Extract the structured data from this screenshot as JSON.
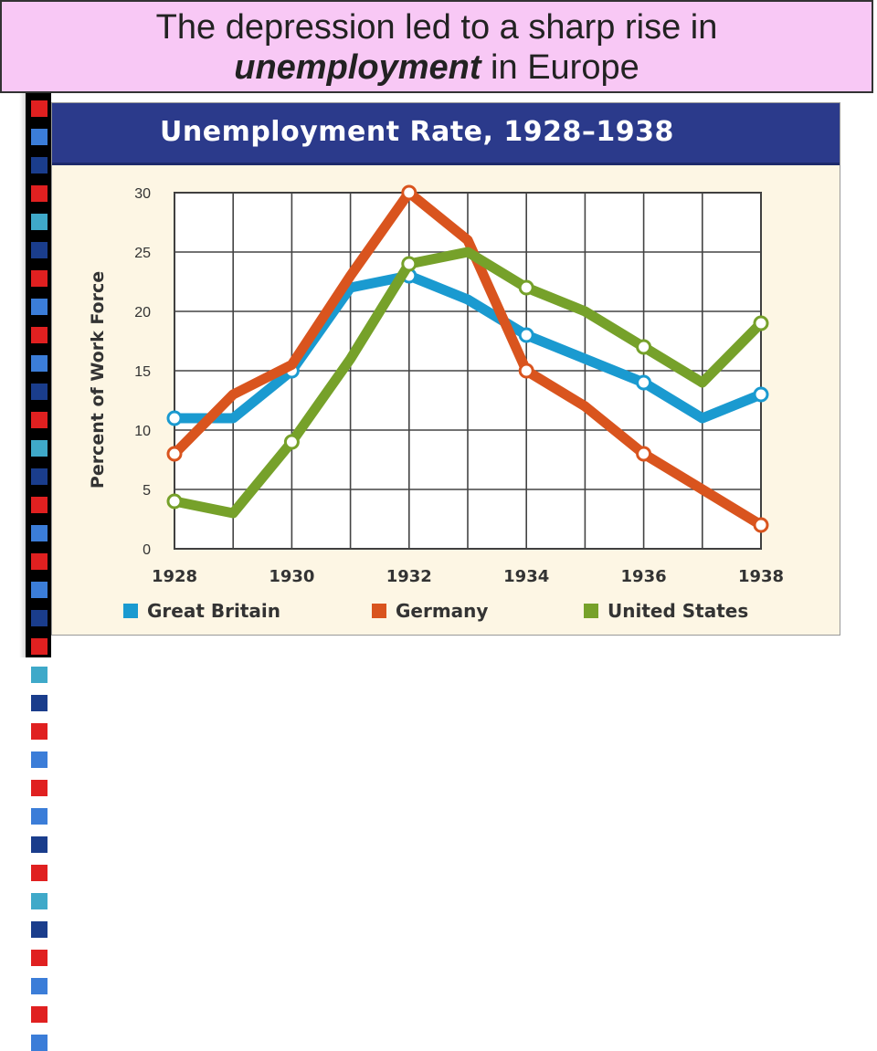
{
  "slide": {
    "title_line1": "The depression led to a sharp rise in",
    "title_emphasis": "unemployment",
    "title_rest": " in Europe"
  },
  "colors": {
    "title_bg": "#f8c8f5",
    "header_bg": "#2b3a8b",
    "great_britain": "#1a9ad0",
    "germany": "#d9541e",
    "united_states": "#76a12a"
  },
  "chart_data": {
    "type": "line",
    "title": "Unemployment Rate, 1928–1938",
    "xlabel": "",
    "ylabel": "Percent of Work Force",
    "x": [
      1928,
      1929,
      1930,
      1931,
      1932,
      1933,
      1934,
      1935,
      1936,
      1937,
      1938
    ],
    "x_tick_labels": [
      "1928",
      "1930",
      "1932",
      "1934",
      "1936",
      "1938"
    ],
    "y_tick_labels": [
      "0",
      "5",
      "10",
      "15",
      "20",
      "25",
      "30"
    ],
    "xlim": [
      1928,
      1938
    ],
    "ylim": [
      0,
      30
    ],
    "grid": true,
    "legend_position": "bottom",
    "series": [
      {
        "name": "Great Britain",
        "color": "#1a9ad0",
        "values": [
          11,
          11,
          15,
          22,
          23,
          21,
          18,
          16,
          14,
          11,
          13
        ],
        "markers": [
          1928,
          1930,
          1932,
          1934,
          1936,
          1938
        ]
      },
      {
        "name": "Germany",
        "color": "#d9541e",
        "values": [
          8,
          13,
          15.5,
          23,
          30,
          26,
          15,
          12,
          8,
          5,
          2
        ],
        "markers": [
          1928,
          1932,
          1934,
          1936,
          1938
        ]
      },
      {
        "name": "United States",
        "color": "#76a12a",
        "values": [
          4,
          3,
          9,
          16,
          24,
          25,
          22,
          20,
          17,
          14,
          19
        ],
        "markers": [
          1928,
          1930,
          1932,
          1934,
          1936,
          1938
        ]
      }
    ]
  }
}
